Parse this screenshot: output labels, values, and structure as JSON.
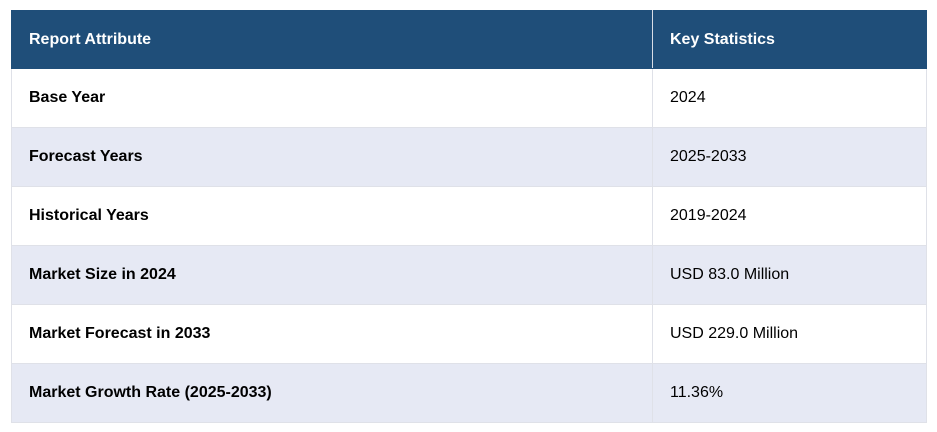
{
  "table": {
    "headers": [
      "Report Attribute",
      "Key Statistics"
    ],
    "rows": [
      {
        "attribute": "Base Year",
        "value": "2024"
      },
      {
        "attribute": "Forecast Years",
        "value": "2025-2033"
      },
      {
        "attribute": "Historical Years",
        "value": "2019-2024"
      },
      {
        "attribute": "Market Size in 2024",
        "value": "USD 83.0 Million"
      },
      {
        "attribute": "Market Forecast in 2033",
        "value": "USD 229.0 Million"
      },
      {
        "attribute": "Market Growth Rate (2025-2033)",
        "value": "11.36%"
      }
    ]
  },
  "colors": {
    "header_bg": "#1f4e79",
    "header_text": "#ffffff",
    "row_alt_bg": "#e6e9f4",
    "row_bg": "#ffffff"
  }
}
